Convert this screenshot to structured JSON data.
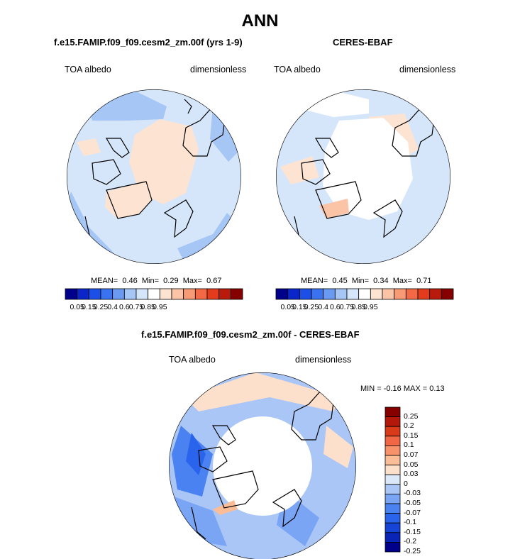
{
  "figure": {
    "title": "ANN"
  },
  "palette_abs": [
    "#00008b",
    "#0a26c8",
    "#1c4fe6",
    "#3a73f0",
    "#6a9af2",
    "#a6c6f6",
    "#d6e6fa",
    "#ffffff",
    "#fde3d2",
    "#fbc4a6",
    "#f89a73",
    "#f36945",
    "#e23c1d",
    "#b81a0b",
    "#870000"
  ],
  "palette_diff": [
    "#00008b",
    "#0b24b8",
    "#1544d6",
    "#2a63ec",
    "#4a82f2",
    "#7aa4f4",
    "#aac6f6",
    "#dbe8fa",
    "#fde0cc",
    "#fbbc98",
    "#f8926a",
    "#f16644",
    "#d93a1a",
    "#b3180a",
    "#870000"
  ],
  "panels": [
    {
      "title": "f.e15.FAMIP.f09_f09.cesm2_zm.00f (yrs 1-9)",
      "left_label": "TOA albedo",
      "right_label": "dimensionless",
      "mean_label": "MEAN=",
      "mean": "0.46",
      "min_label": "Min=",
      "min": "0.29",
      "max_label": "Max=",
      "max": "0.67",
      "colorbar_ticks": [
        "0.05",
        "0.15",
        "0.25",
        "0.4",
        "0.6",
        "0.75",
        "0.85",
        "0.95"
      ]
    },
    {
      "title": "CERES-EBAF",
      "left_label": "TOA albedo",
      "right_label": "dimensionless",
      "mean_label": "MEAN=",
      "mean": "0.45",
      "min_label": "Min=",
      "min": "0.34",
      "max_label": "Max=",
      "max": "0.71",
      "colorbar_ticks": [
        "0.05",
        "0.15",
        "0.25",
        "0.4",
        "0.6",
        "0.75",
        "0.85",
        "0.95"
      ]
    },
    {
      "title": "f.e15.FAMIP.f09_f09.cesm2_zm.00f - CERES-EBAF",
      "left_label": "TOA albedo",
      "right_label": "dimensionless",
      "minmax_text": "MIN =  -0.16 MAX =   0.13",
      "colorbar_ticks": [
        "0.25",
        "0.2",
        "0.15",
        "0.1",
        "0.07",
        "0.05",
        "0.03",
        "0",
        "-0.03",
        "-0.05",
        "-0.07",
        "-0.1",
        "-0.15",
        "-0.2",
        "-0.25"
      ]
    }
  ]
}
